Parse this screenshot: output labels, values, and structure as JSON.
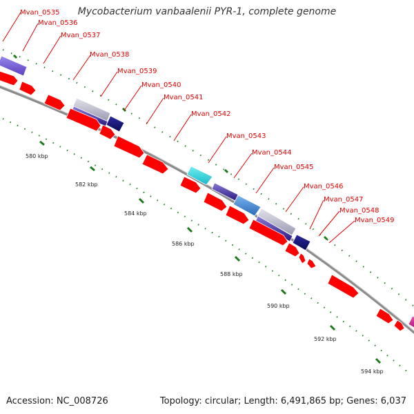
{
  "title": "Mycobacterium vanbaalenii PYR-1, complete genome",
  "accession_text": "Accession: NC_008726",
  "info_text": "Topology: circular; Length: 6,491,865 bp; Genes: 6,037",
  "colors": {
    "cds": "#ff0000",
    "backbone": "#8c8c8c",
    "tick": "#1a7a1a",
    "label": "#e00000"
  },
  "scale_ticks": [
    {
      "kbp": 580,
      "label": "580 kbp"
    },
    {
      "kbp": 582,
      "label": "582 kbp"
    },
    {
      "kbp": 584,
      "label": "584 kbp"
    },
    {
      "kbp": 586,
      "label": "586 kbp"
    },
    {
      "kbp": 588,
      "label": "588 kbp"
    },
    {
      "kbp": 590,
      "label": "590 kbp"
    },
    {
      "kbp": 592,
      "label": "592 kbp"
    },
    {
      "kbp": 594,
      "label": "594 kbp"
    }
  ],
  "gene_labels": [
    "Mvan_0535",
    "Mvan_0536",
    "Mvan_0537",
    "Mvan_0538",
    "Mvan_0539",
    "Mvan_0540",
    "Mvan_0541",
    "Mvan_0542",
    "Mvan_0543",
    "Mvan_0544",
    "Mvan_0545",
    "Mvan_0546",
    "Mvan_0547",
    "Mvan_0548",
    "Mvan_0549"
  ]
}
